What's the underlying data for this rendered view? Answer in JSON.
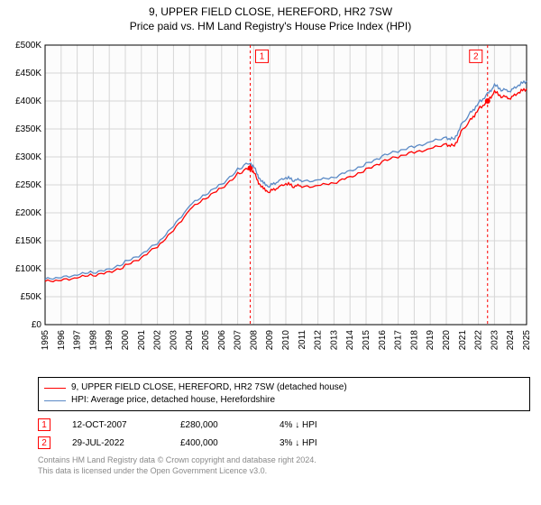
{
  "title": "9, UPPER FIELD CLOSE, HEREFORD, HR2 7SW",
  "subtitle": "Price paid vs. HM Land Registry's House Price Index (HPI)",
  "chart": {
    "type": "line",
    "background_color": "#ffffff",
    "plot_bg": "#fcfcfc",
    "grid_color": "#d6d6d6",
    "axis_color": "#000000",
    "ylim": [
      0,
      500000
    ],
    "ytick_step": 50000,
    "yticks": [
      "£0",
      "£50K",
      "£100K",
      "£150K",
      "£200K",
      "£250K",
      "£300K",
      "£350K",
      "£400K",
      "£450K",
      "£500K"
    ],
    "xlim": [
      1995,
      2025
    ],
    "xticks": [
      1995,
      1996,
      1997,
      1998,
      1999,
      2000,
      2001,
      2002,
      2003,
      2004,
      2005,
      2006,
      2007,
      2008,
      2009,
      2010,
      2011,
      2012,
      2013,
      2014,
      2015,
      2016,
      2017,
      2018,
      2019,
      2020,
      2021,
      2022,
      2023,
      2024,
      2025
    ],
    "series": [
      {
        "name": "red",
        "color": "#ff0000",
        "width": 1.3,
        "data": [
          [
            1995,
            80000
          ],
          [
            1996,
            80000
          ],
          [
            1997,
            83000
          ],
          [
            1998,
            88000
          ],
          [
            1999,
            95000
          ],
          [
            2000,
            105000
          ],
          [
            2001,
            118000
          ],
          [
            2002,
            140000
          ],
          [
            2003,
            170000
          ],
          [
            2004,
            205000
          ],
          [
            2005,
            225000
          ],
          [
            2006,
            245000
          ],
          [
            2007,
            270000
          ],
          [
            2007.78,
            280000
          ],
          [
            2008,
            272000
          ],
          [
            2008.3,
            255000
          ],
          [
            2008.6,
            242000
          ],
          [
            2009,
            238000
          ],
          [
            2009.5,
            245000
          ],
          [
            2010,
            252000
          ],
          [
            2010.5,
            248000
          ],
          [
            2011,
            248000
          ],
          [
            2012,
            248000
          ],
          [
            2013,
            252000
          ],
          [
            2014,
            265000
          ],
          [
            2015,
            278000
          ],
          [
            2016,
            290000
          ],
          [
            2017,
            300000
          ],
          [
            2018,
            310000
          ],
          [
            2019,
            315000
          ],
          [
            2020,
            322000
          ],
          [
            2020.5,
            320000
          ],
          [
            2021,
            348000
          ],
          [
            2021.5,
            365000
          ],
          [
            2022,
            385000
          ],
          [
            2022.57,
            400000
          ],
          [
            2023,
            416000
          ],
          [
            2023.5,
            408000
          ],
          [
            2024,
            405000
          ],
          [
            2024.5,
            415000
          ],
          [
            2025,
            422000
          ]
        ]
      },
      {
        "name": "blue",
        "color": "#5b8ac6",
        "width": 1.3,
        "data": [
          [
            1995,
            84000
          ],
          [
            1996,
            85000
          ],
          [
            1997,
            88000
          ],
          [
            1998,
            93000
          ],
          [
            1999,
            100000
          ],
          [
            2000,
            112000
          ],
          [
            2001,
            124000
          ],
          [
            2002,
            146000
          ],
          [
            2003,
            178000
          ],
          [
            2004,
            212000
          ],
          [
            2005,
            232000
          ],
          [
            2006,
            252000
          ],
          [
            2007,
            278000
          ],
          [
            2007.78,
            290000
          ],
          [
            2008,
            282000
          ],
          [
            2008.3,
            265000
          ],
          [
            2008.6,
            252000
          ],
          [
            2009,
            248000
          ],
          [
            2009.5,
            256000
          ],
          [
            2010,
            263000
          ],
          [
            2010.5,
            259000
          ],
          [
            2011,
            258000
          ],
          [
            2012,
            258000
          ],
          [
            2013,
            262000
          ],
          [
            2014,
            276000
          ],
          [
            2015,
            288000
          ],
          [
            2016,
            300000
          ],
          [
            2017,
            310000
          ],
          [
            2018,
            320000
          ],
          [
            2019,
            327000
          ],
          [
            2020,
            334000
          ],
          [
            2020.5,
            332000
          ],
          [
            2021,
            360000
          ],
          [
            2021.5,
            378000
          ],
          [
            2022,
            396000
          ],
          [
            2022.57,
            412000
          ],
          [
            2023,
            428000
          ],
          [
            2023.5,
            420000
          ],
          [
            2024,
            418000
          ],
          [
            2024.5,
            428000
          ],
          [
            2025,
            436000
          ]
        ]
      }
    ],
    "markers": [
      {
        "id": "1",
        "x": 2007.78,
        "y": 280000,
        "label_y": 480000,
        "line_color": "#ff0000",
        "line_dash": "3,3"
      },
      {
        "id": "2",
        "x": 2022.57,
        "y": 400000,
        "label_y": 480000,
        "line_color": "#ff0000",
        "line_dash": "3,3"
      }
    ],
    "point_color": "#ff0000",
    "point_radius": 3
  },
  "legend": {
    "items": [
      {
        "color": "#ff0000",
        "label": "9, UPPER FIELD CLOSE, HEREFORD, HR2 7SW (detached house)"
      },
      {
        "color": "#5b8ac6",
        "label": "HPI: Average price, detached house, Herefordshire"
      }
    ]
  },
  "sales": [
    {
      "id": "1",
      "date": "12-OCT-2007",
      "price": "£280,000",
      "diff": "4%  ↓  HPI"
    },
    {
      "id": "2",
      "date": "29-JUL-2022",
      "price": "£400,000",
      "diff": "3%  ↓  HPI"
    }
  ],
  "footer_line1": "Contains HM Land Registry data © Crown copyright and database right 2024.",
  "footer_line2": "This data is licensed under the Open Government Licence v3.0.",
  "label_fontsize": 10,
  "title_fontsize": 12
}
